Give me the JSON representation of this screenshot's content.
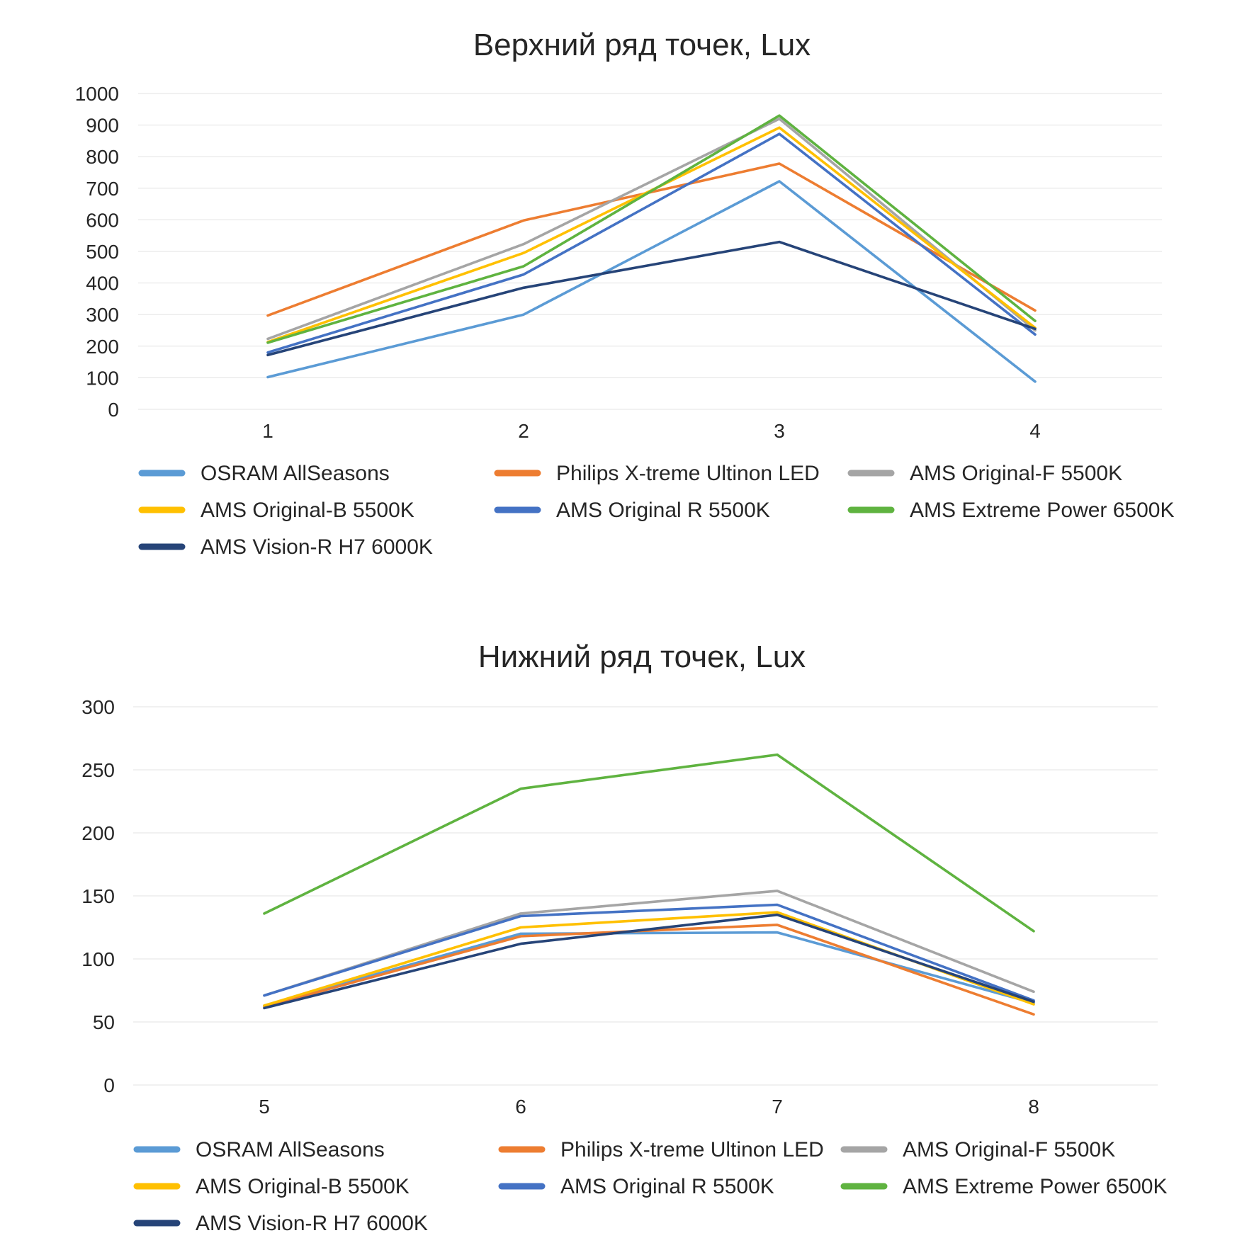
{
  "charts": [
    {
      "type": "line",
      "title": "Верхний ряд точек, Lux",
      "categories": [
        "1",
        "2",
        "3",
        "4"
      ],
      "ylim": [
        0,
        1000
      ],
      "yticks": [
        0,
        100,
        200,
        300,
        400,
        500,
        600,
        700,
        800,
        900,
        1000
      ],
      "grid": true,
      "legend_position": "bottom",
      "series": [
        {
          "name": "OSRAM AllSeasons",
          "color": "#5b9bd5",
          "values": [
            102,
            300,
            722,
            88
          ]
        },
        {
          "name": "Philips X-treme Ultinon LED",
          "color": "#ed7d31",
          "values": [
            297,
            598,
            778,
            313
          ]
        },
        {
          "name": "AMS Original-F 5500K",
          "color": "#a5a5a5",
          "values": [
            223,
            523,
            920,
            250
          ]
        },
        {
          "name": "AMS Original-B 5500K",
          "color": "#ffc000",
          "values": [
            213,
            495,
            892,
            258
          ]
        },
        {
          "name": "AMS Original R 5500K",
          "color": "#4472c4",
          "values": [
            180,
            427,
            872,
            237
          ]
        },
        {
          "name": "AMS Extreme Power 6500K",
          "color": "#5fb340",
          "values": [
            211,
            453,
            930,
            280
          ]
        },
        {
          "name": "AMS Vision-R  H7 6000K",
          "color": "#264478",
          "values": [
            172,
            385,
            530,
            255
          ]
        }
      ]
    },
    {
      "type": "line",
      "title": "Нижний ряд точек, Lux",
      "categories": [
        "5",
        "6",
        "7",
        "8"
      ],
      "ylim": [
        0,
        300
      ],
      "yticks": [
        0,
        50,
        100,
        150,
        200,
        250,
        300
      ],
      "grid": true,
      "legend_position": "bottom",
      "series": [
        {
          "name": "OSRAM AllSeasons",
          "color": "#5b9bd5",
          "values": [
            63,
            120,
            121,
            65
          ]
        },
        {
          "name": "Philips X-treme Ultinon LED",
          "color": "#ed7d31",
          "values": [
            62,
            118,
            127,
            56
          ]
        },
        {
          "name": "AMS Original-F 5500K",
          "color": "#a5a5a5",
          "values": [
            71,
            136,
            154,
            74
          ]
        },
        {
          "name": "AMS Original-B 5500K",
          "color": "#ffc000",
          "values": [
            63,
            125,
            137,
            64
          ]
        },
        {
          "name": "AMS Original R 5500K",
          "color": "#4472c4",
          "values": [
            71,
            134,
            143,
            67
          ]
        },
        {
          "name": "AMS Extreme Power 6500K",
          "color": "#5fb340",
          "values": [
            136,
            235,
            262,
            122
          ]
        },
        {
          "name": "AMS Vision-R  H7 6000K",
          "color": "#264478",
          "values": [
            61,
            112,
            135,
            66
          ]
        }
      ]
    }
  ]
}
